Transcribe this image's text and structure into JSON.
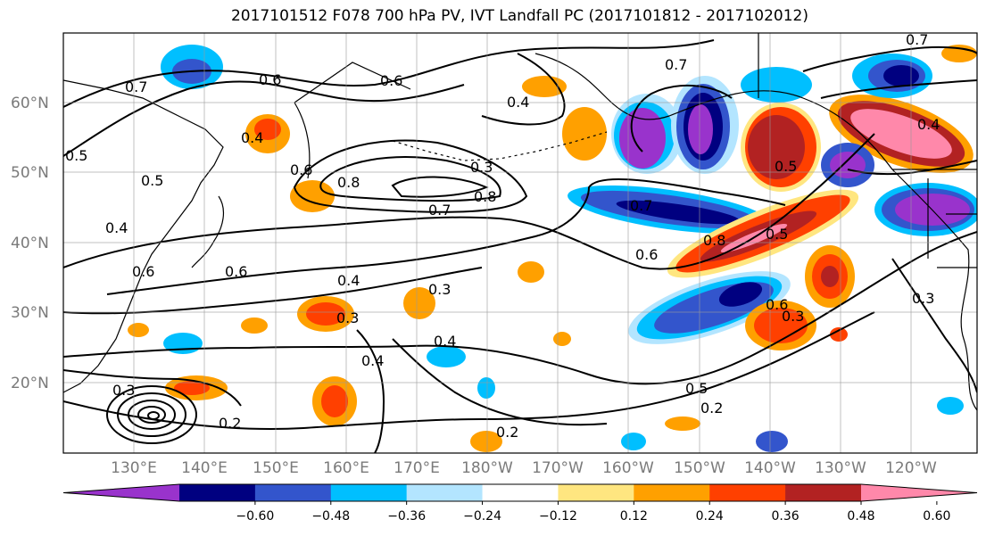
{
  "title": "2017101512 F078 700 hPa PV, IVT Landfall PC (2017101812 - 2017102012)",
  "map": {
    "lat_labels": [
      "60°N",
      "50°N",
      "40°N",
      "30°N",
      "20°N"
    ],
    "lon_labels": [
      "130°E",
      "140°E",
      "150°E",
      "160°E",
      "170°E",
      "180°W",
      "170°W",
      "160°W",
      "150°W",
      "140°W",
      "130°W",
      "120°W"
    ],
    "contour_labels": [
      "0.6",
      "0.4",
      "0.4",
      "0.3",
      "0.8",
      "0.7",
      "0.8",
      "0.6",
      "0.5",
      "0.7",
      "0.8",
      "0.4",
      "0.5",
      "0.6",
      "0.6",
      "0.7",
      "0.5",
      "0.3",
      "0.6",
      "0.3",
      "0.4",
      "0.4",
      "0.4",
      "0.6",
      "0.3",
      "0.5",
      "0.3",
      "0.2",
      "0.2",
      "0.2",
      "0.7",
      "0.6",
      "0.5",
      "0.3",
      "0.7",
      "0.4"
    ]
  },
  "colorbar": {
    "ticks": [
      "−0.60",
      "−0.48",
      "−0.36",
      "−0.24",
      "−0.12",
      "0.12",
      "0.24",
      "0.36",
      "0.48",
      "0.60"
    ],
    "colors": [
      "#9933cc",
      "#000080",
      "#3355cc",
      "#00bfff",
      "#b3e5ff",
      "#ffffff",
      "#ffe680",
      "#ffa000",
      "#ff4000",
      "#b22222",
      "#ff88aa"
    ]
  },
  "palette": {
    "purple": "#9933cc",
    "navy": "#000080",
    "blue": "#3355cc",
    "cyan": "#00bfff",
    "lightblue": "#b3e5ff",
    "yellow": "#ffe680",
    "orange": "#ffa000",
    "red": "#ff4000",
    "darkred": "#b22222",
    "pink": "#ff88aa"
  }
}
